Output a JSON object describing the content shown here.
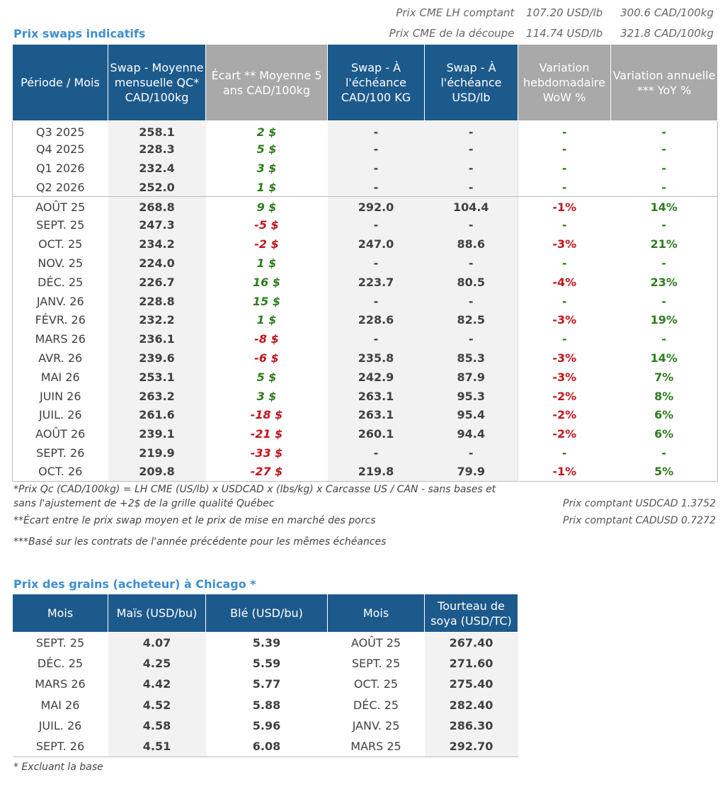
{
  "cme": {
    "lh_label": "Prix CME LH comptant",
    "lh_usd": "107.20 USD/lb",
    "lh_cad": "300.6 CAD/100kg",
    "cut_label": "Prix CME de la découpe",
    "cut_usd": "114.74 USD/lb",
    "cut_cad": "321.8 CAD/100kg"
  },
  "swaps": {
    "title": "Prix swaps indicatifs",
    "headers": [
      "Période / Mois",
      "Swap - Moyenne mensuelle QC* CAD/100kg",
      "Écart ** Moyenne 5 ans CAD/100kg",
      "Swap - À l'échéance CAD/100 KG",
      "Swap - À l'échéance USD/lb",
      "Variation hebdomadaire WoW %",
      "Variation annuelle *** YoY %"
    ],
    "rows": [
      {
        "period": "Q3 2025",
        "swap_qc": "258.1",
        "ecart": "2 $",
        "swap_cad": "-",
        "swap_usd": "-",
        "wow": "-",
        "yoy": "-"
      },
      {
        "period": "Q4 2025",
        "swap_qc": "228.3",
        "ecart": "5 $",
        "swap_cad": "-",
        "swap_usd": "-",
        "wow": "-",
        "yoy": "-"
      },
      {
        "period": "Q1 2026",
        "swap_qc": "232.4",
        "ecart": "3 $",
        "swap_cad": "-",
        "swap_usd": "-",
        "wow": "-",
        "yoy": "-"
      },
      {
        "period": "Q2 2026",
        "swap_qc": "252.0",
        "ecart": "1 $",
        "swap_cad": "-",
        "swap_usd": "-",
        "wow": "-",
        "yoy": "-"
      },
      {
        "period": "AOÛT 25",
        "swap_qc": "268.8",
        "ecart": "9 $",
        "swap_cad": "292.0",
        "swap_usd": "104.4",
        "wow": "-1%",
        "yoy": "14%"
      },
      {
        "period": "SEPT. 25",
        "swap_qc": "247.3",
        "ecart": "-5 $",
        "swap_cad": "-",
        "swap_usd": "-",
        "wow": "-",
        "yoy": "-"
      },
      {
        "period": "OCT. 25",
        "swap_qc": "234.2",
        "ecart": "-2 $",
        "swap_cad": "247.0",
        "swap_usd": "88.6",
        "wow": "-3%",
        "yoy": "21%"
      },
      {
        "period": "NOV. 25",
        "swap_qc": "224.0",
        "ecart": "1 $",
        "swap_cad": "-",
        "swap_usd": "-",
        "wow": "-",
        "yoy": "-"
      },
      {
        "period": "DÉC. 25",
        "swap_qc": "226.7",
        "ecart": "16 $",
        "swap_cad": "223.7",
        "swap_usd": "80.5",
        "wow": "-4%",
        "yoy": "23%"
      },
      {
        "period": "JANV. 26",
        "swap_qc": "228.8",
        "ecart": "15 $",
        "swap_cad": "-",
        "swap_usd": "-",
        "wow": "-",
        "yoy": "-"
      },
      {
        "period": "FÉVR. 26",
        "swap_qc": "232.2",
        "ecart": "1 $",
        "swap_cad": "228.6",
        "swap_usd": "82.5",
        "wow": "-3%",
        "yoy": "19%"
      },
      {
        "period": "MARS 26",
        "swap_qc": "236.1",
        "ecart": "-8 $",
        "swap_cad": "-",
        "swap_usd": "-",
        "wow": "-",
        "yoy": "-"
      },
      {
        "period": "AVR. 26",
        "swap_qc": "239.6",
        "ecart": "-6 $",
        "swap_cad": "235.8",
        "swap_usd": "85.3",
        "wow": "-3%",
        "yoy": "14%"
      },
      {
        "period": "MAI 26",
        "swap_qc": "253.1",
        "ecart": "5 $",
        "swap_cad": "242.9",
        "swap_usd": "87.9",
        "wow": "-3%",
        "yoy": "7%"
      },
      {
        "period": "JUIN 26",
        "swap_qc": "263.2",
        "ecart": "3 $",
        "swap_cad": "263.1",
        "swap_usd": "95.3",
        "wow": "-2%",
        "yoy": "8%"
      },
      {
        "period": "JUIL. 26",
        "swap_qc": "261.6",
        "ecart": "-18 $",
        "swap_cad": "263.1",
        "swap_usd": "95.4",
        "wow": "-2%",
        "yoy": "6%"
      },
      {
        "period": "AOÛT 26",
        "swap_qc": "239.1",
        "ecart": "-21 $",
        "swap_cad": "260.1",
        "swap_usd": "94.4",
        "wow": "-2%",
        "yoy": "6%"
      },
      {
        "period": "SEPT. 26",
        "swap_qc": "219.9",
        "ecart": "-33 $",
        "swap_cad": "-",
        "swap_usd": "-",
        "wow": "-",
        "yoy": "-"
      },
      {
        "period": "OCT. 26",
        "swap_qc": "209.8",
        "ecart": "-27 $",
        "swap_cad": "219.8",
        "swap_usd": "79.9",
        "wow": "-1%",
        "yoy": "5%"
      }
    ],
    "note1_a": "*Prix Qc (CAD/100kg) = LH CME (US/lb) x USDCAD x (lbs/kg) x Carcasse US / CAN - sans bases et",
    "note1_b": "sans l'ajustement de +2$ de la grille qualité Québec",
    "note2": "**Écart entre le prix swap moyen et le prix de mise en marché des porcs",
    "note3": "***Basé sur les contrats de l'année précédente pour les mêmes échéances",
    "fx_usdcad": "Prix comptant USDCAD 1.3752",
    "fx_cadusd": "Prix comptant CADUSD 0.7272"
  },
  "grains": {
    "title": "Prix des grains (acheteur) à Chicago *",
    "headers": [
      "Mois",
      "Maïs (USD/bu)",
      "Blé (USD/bu)",
      "Mois",
      "Tourteau de soya (USD/TC)"
    ],
    "rows": [
      {
        "mois": "SEPT. 25",
        "mais": "4.07",
        "ble": "5.39",
        "mois2": "AOÛT 25",
        "soya": "267.40"
      },
      {
        "mois": "DÉC. 25",
        "mais": "4.25",
        "ble": "5.59",
        "mois2": "SEPT. 25",
        "soya": "271.60"
      },
      {
        "mois": "MARS 26",
        "mais": "4.42",
        "ble": "5.77",
        "mois2": "OCT. 25",
        "soya": "275.40"
      },
      {
        "mois": "MAI 26",
        "mais": "4.52",
        "ble": "5.88",
        "mois2": "DÉC. 25",
        "soya": "282.40"
      },
      {
        "mois": "JUIL. 26",
        "mais": "4.58",
        "ble": "5.96",
        "mois2": "JANV. 25",
        "soya": "286.30"
      },
      {
        "mois": "SEPT. 26",
        "mais": "4.51",
        "ble": "6.08",
        "mois2": "MARS 25",
        "soya": "292.70"
      }
    ],
    "note": "* Excluant la base"
  }
}
